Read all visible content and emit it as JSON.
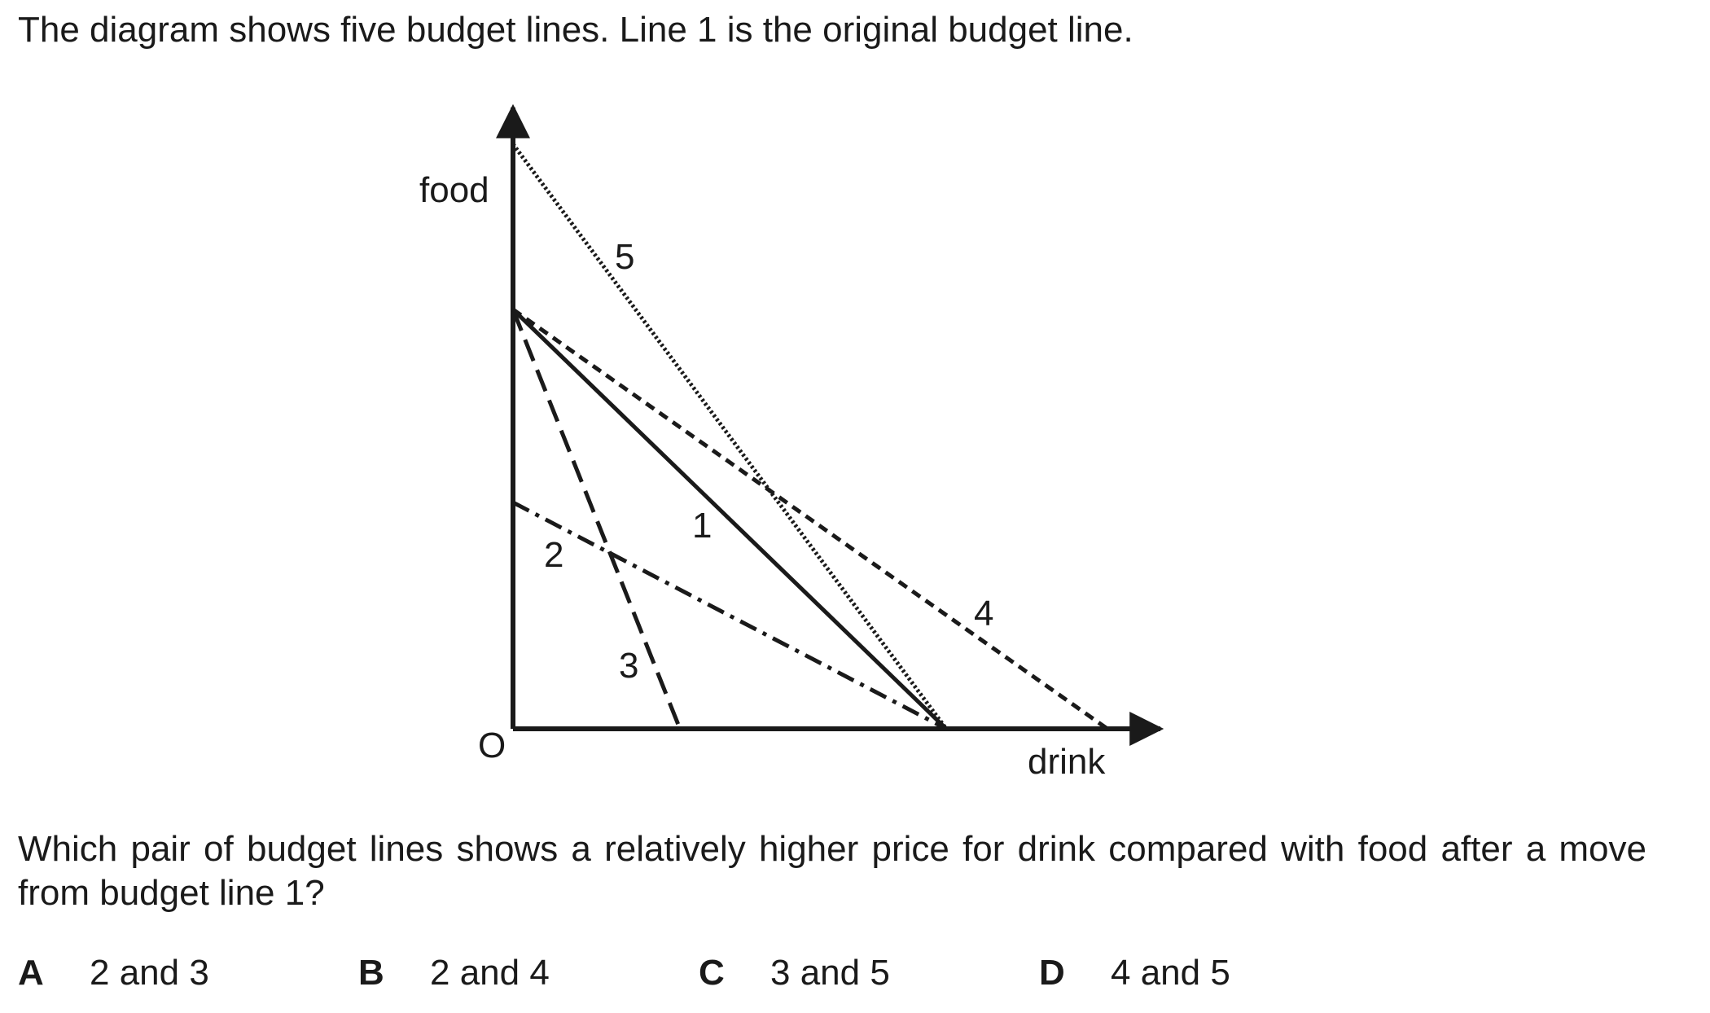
{
  "intro_text": "The diagram shows five budget lines. Line 1 is the original budget line.",
  "diagram": {
    "y_axis_label": "food",
    "x_axis_label": "drink",
    "origin_label": "O",
    "line_labels": [
      "1",
      "2",
      "3",
      "4",
      "5"
    ]
  },
  "question_text": "Which pair of budget lines shows a relatively higher price for drink compared with food after a move from budget line 1?",
  "options": [
    {
      "letter": "A",
      "text": "2 and 3"
    },
    {
      "letter": "B",
      "text": "2 and 4"
    },
    {
      "letter": "C",
      "text": "3 and 5"
    },
    {
      "letter": "D",
      "text": "4 and 5"
    }
  ]
}
